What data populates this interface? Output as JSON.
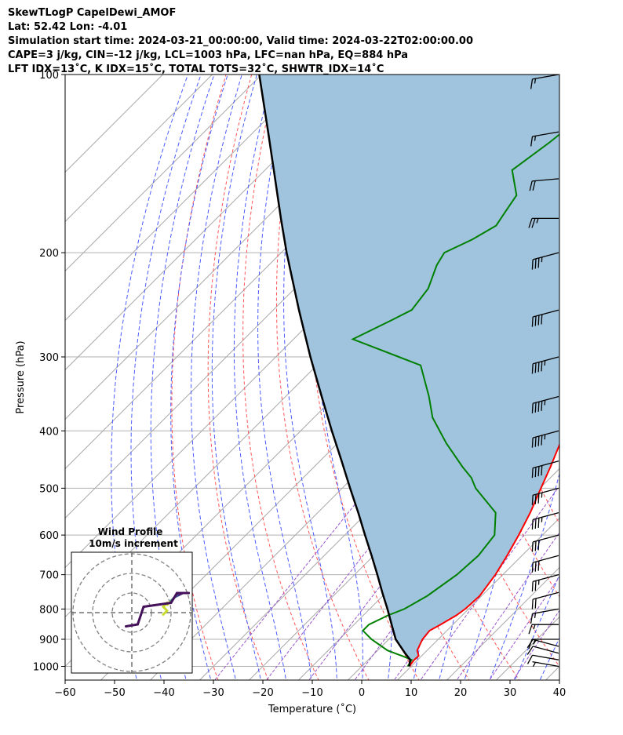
{
  "title_lines": [
    "SkewTLogP CapelDewi_AMOF",
    "Lat: 52.42   Lon: -4.01",
    "Simulation start time: 2024-03-21_00:00:00, Valid time: 2024-03-22T02:00:00.00",
    "CAPE=3 j/kg, CIN=-12 j/kg, LCL=1003 hPa, LFC=nan hPa, EQ=884 hPa",
    "LFT IDX=13˚C, K IDX=15˚C, TOTAL TOTS=32˚C, SHWTR_IDX=14˚C"
  ],
  "chart_data": {
    "type": "line",
    "subtype": "skew-t log-p",
    "xlabel": "Temperature (˚C)",
    "ylabel": "Pressure (hPa)",
    "xlim": [
      -60,
      40
    ],
    "ylim": [
      1050,
      100
    ],
    "y_scale": "log",
    "grid": true,
    "x_ticks": [
      "−60",
      "−50",
      "−40",
      "−30",
      "−20",
      "−10",
      "0",
      "10",
      "20",
      "30",
      "40"
    ],
    "x_tick_values": [
      -60,
      -50,
      -40,
      -30,
      -20,
      -10,
      0,
      10,
      20,
      30,
      40
    ],
    "y_ticks": [
      "100",
      "200",
      "300",
      "400",
      "500",
      "600",
      "700",
      "800",
      "900",
      "1000"
    ],
    "y_tick_values": [
      100,
      200,
      300,
      400,
      500,
      600,
      700,
      800,
      900,
      1000
    ],
    "colors": {
      "temperature": "#ff0000",
      "dewpoint": "#008000",
      "parcel": "#000000",
      "fill": "#a0c4de",
      "dry_adiabat": "#ff5555",
      "moist_adiabat": "#4a5cff",
      "mixing_ratio": "#9955cc",
      "isotherm": "#aaaaaa"
    },
    "temperature_profile": {
      "pressure": [
        1000,
        975,
        960,
        940,
        900,
        870,
        850,
        820,
        800,
        790,
        760,
        700,
        650,
        600,
        550,
        500,
        460,
        420,
        380,
        350,
        310,
        280,
        250,
        220,
        200,
        190,
        185,
        175,
        160,
        150,
        140,
        130,
        120,
        110,
        100
      ],
      "temperature": [
        9.6,
        9.3,
        9.4,
        8,
        6.8,
        6.5,
        7.5,
        8.8,
        9.3,
        9.4,
        9.6,
        8.5,
        7,
        5.2,
        3,
        0.2,
        -2.2,
        -5,
        -8.5,
        -11,
        -15.5,
        -20,
        -25,
        -30,
        -33,
        -35,
        -37,
        -37.5,
        -40,
        -43,
        -46,
        -49,
        -52,
        -55,
        -58
      ]
    },
    "dewpoint_profile": {
      "pressure": [
        1000,
        975,
        960,
        940,
        900,
        870,
        850,
        820,
        800,
        790,
        760,
        700,
        650,
        600,
        550,
        500,
        480,
        460,
        420,
        380,
        350,
        310,
        280,
        260,
        250,
        230,
        210,
        200,
        190,
        180,
        170,
        160,
        145,
        130,
        120,
        110,
        100
      ],
      "dewpoint": [
        9.3,
        8.8,
        6,
        2,
        -3.5,
        -7,
        -7,
        -5,
        -3,
        -2.5,
        -1,
        0.7,
        1.2,
        0.3,
        -4,
        -13,
        -16,
        -20,
        -28,
        -36,
        -41,
        -49,
        -68,
        -64,
        -62,
        -63,
        -66,
        -67,
        -64,
        -62,
        -63,
        -64,
        -70,
        -68,
        -67,
        -66,
        -65
      ]
    },
    "parcel_profile": {
      "pressure": [
        1000,
        975,
        950,
        900,
        850,
        800,
        750,
        700,
        650,
        600,
        550,
        500,
        450,
        400,
        350,
        300,
        250,
        200,
        175,
        150,
        125,
        100
      ],
      "temperature": [
        9.6,
        8.5,
        6.1,
        1.4,
        -2.4,
        -6.4,
        -10.8,
        -15.4,
        -20.4,
        -25.9,
        -31.8,
        -38.4,
        -45.6,
        -53.7,
        -62.7,
        -73,
        -84.8,
        -98.9,
        -107,
        -116.2,
        -127.1,
        -140.5
      ]
    },
    "winds": {
      "pressure": [
        1000,
        975,
        950,
        925,
        900,
        850,
        800,
        750,
        700,
        650,
        600,
        550,
        500,
        450,
        400,
        350,
        300,
        250,
        200,
        175,
        150,
        125,
        100
      ],
      "speed_kt": [
        5,
        10,
        12,
        15,
        15,
        15,
        15,
        20,
        25,
        30,
        30,
        35,
        35,
        40,
        45,
        45,
        45,
        40,
        35,
        25,
        20,
        15,
        15
      ],
      "direction_deg": [
        280,
        280,
        285,
        285,
        270,
        270,
        260,
        255,
        255,
        255,
        255,
        255,
        255,
        255,
        255,
        255,
        255,
        255,
        255,
        270,
        265,
        260,
        260
      ]
    },
    "inset": {
      "title_line1": "Wind Profile",
      "title_line2": "10m/s increment",
      "hodograph": [
        {
          "u": 16,
          "v": -1,
          "color": "#c8dc2c"
        },
        {
          "u": 18,
          "v": 1,
          "color": "#c8dc2c"
        },
        {
          "u": 16,
          "v": 3,
          "color": "#c8dc2c"
        },
        {
          "u": 18,
          "v": 5,
          "color": "#c8dc2c"
        },
        {
          "u": 18,
          "v": 4,
          "color": "#c8dc2c"
        },
        {
          "u": 20,
          "v": 6,
          "color": "#2a8f8a"
        },
        {
          "u": 22,
          "v": 8,
          "color": "#3c5c8c"
        },
        {
          "u": 24,
          "v": 9,
          "color": "#462a7c"
        },
        {
          "u": 26,
          "v": 10,
          "color": "#44105a"
        },
        {
          "u": 29,
          "v": 10,
          "color": "#44105a"
        },
        {
          "u": 23,
          "v": 10,
          "color": "#44105a"
        },
        {
          "u": 20,
          "v": 5,
          "color": "#44105a"
        },
        {
          "u": 13,
          "v": 4,
          "color": "#44105a"
        },
        {
          "u": 6,
          "v": 3,
          "color": "#44105a"
        },
        {
          "u": 4,
          "v": -3,
          "color": "#44105a"
        },
        {
          "u": 3,
          "v": -6,
          "color": "#44105a"
        },
        {
          "u": -3,
          "v": -7,
          "color": "#44105a"
        }
      ],
      "rings": [
        10,
        20,
        30
      ]
    }
  }
}
